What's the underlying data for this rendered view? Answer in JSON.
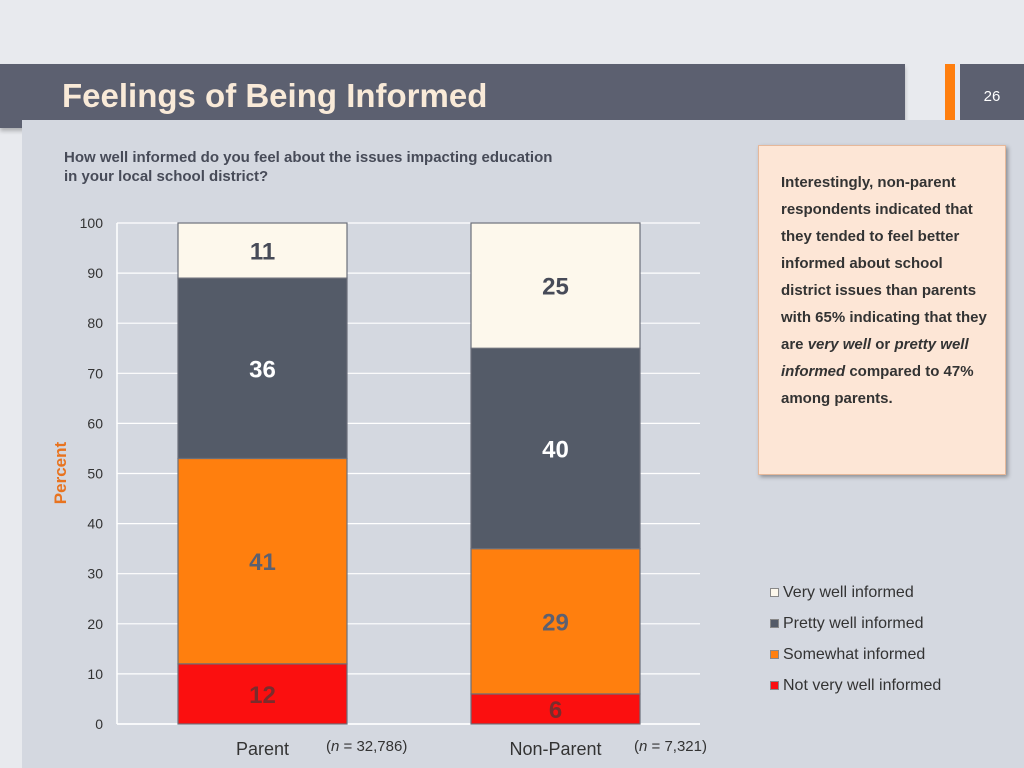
{
  "header": {
    "title": "Feelings of Being Informed",
    "page_number": "26"
  },
  "question": "How well informed do you feel about the issues impacting education in your local school district?",
  "callout": {
    "t1": "Interestingly, non-parent respondents indicated that they tended to feel better informed about school district issues than parents with 65% indicating that they are ",
    "em1": "very well",
    "t2": " or ",
    "em2": "pretty well informed",
    "t3": " compared to 47% among parents."
  },
  "colors": {
    "very_well": "#fdf8ec",
    "pretty_well": "#545b68",
    "somewhat": "#ff7f0e",
    "not_very": "#fb0f0f",
    "axis_label": "#e8731f"
  },
  "chart_data": {
    "type": "bar",
    "stacked": true,
    "categories": [
      "Parent",
      "Non-Parent"
    ],
    "category_notes": [
      {
        "n_symbol": "n",
        "n_text": " = 32,786"
      },
      {
        "n_symbol": "n",
        "n_text": " = 7,321"
      }
    ],
    "series": [
      {
        "name": "Not very well informed",
        "values": [
          12,
          6
        ]
      },
      {
        "name": "Somewhat informed",
        "values": [
          41,
          29
        ]
      },
      {
        "name": "Pretty well informed",
        "values": [
          36,
          40
        ]
      },
      {
        "name": "Very well informed",
        "values": [
          11,
          25
        ]
      }
    ],
    "ylabel": "Percent",
    "ylim": [
      0,
      100
    ],
    "yticks": [
      0,
      10,
      20,
      30,
      40,
      50,
      60,
      70,
      80,
      90,
      100
    ],
    "grid": true,
    "legend_order": [
      "Very well informed",
      "Pretty well informed",
      "Somewhat informed",
      "Not very well informed"
    ],
    "legend_position": "right"
  }
}
